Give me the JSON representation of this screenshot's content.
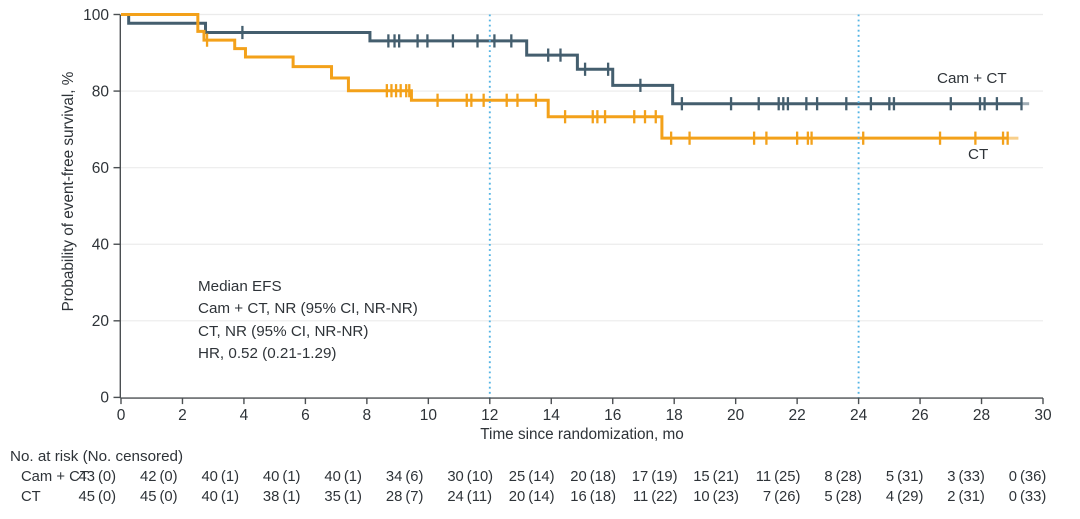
{
  "chart_data": {
    "type": "line",
    "subtype": "kaplan-meier-step-curves",
    "title": "",
    "xlabel": "Time since randomization, mo",
    "ylabel": "Probability of event-free survival, %",
    "xlim": [
      0,
      30
    ],
    "ylim": [
      0,
      100
    ],
    "xticks": [
      0,
      2,
      4,
      6,
      8,
      10,
      12,
      14,
      16,
      18,
      20,
      22,
      24,
      26,
      28,
      30
    ],
    "yticks": [
      0,
      20,
      40,
      60,
      80,
      100
    ],
    "grid": "horizontal",
    "gridline_color": "#ebebeb",
    "axis_color": "#4b4f52",
    "text_color": "#2e3338",
    "reference_lines_x": [
      12,
      24
    ],
    "reference_line_color": "#54b4e4",
    "annotation": {
      "lines": [
        "Median EFS",
        "Cam + CT, NR (95% CI, NR-NR)",
        "CT, NR (95% CI, NR-NR)",
        "HR, 0.52 (0.21-1.29)"
      ]
    },
    "series": [
      {
        "name": "Cam + CT",
        "color": "#445e6e",
        "steps": [
          [
            0,
            100
          ],
          [
            0.25,
            97.7
          ],
          [
            2.75,
            95.3
          ],
          [
            8.1,
            93.1
          ],
          [
            13.2,
            89.4
          ],
          [
            14.85,
            85.7
          ],
          [
            16.0,
            81.5
          ],
          [
            17.95,
            76.7
          ]
        ],
        "end": 29.3,
        "tail_end": 29.55,
        "censors": [
          [
            3.95,
            95.3
          ],
          [
            8.7,
            93.1
          ],
          [
            8.9,
            93.1
          ],
          [
            9.05,
            93.1
          ],
          [
            9.65,
            93.1
          ],
          [
            9.97,
            93.1
          ],
          [
            10.8,
            93.1
          ],
          [
            11.6,
            93.1
          ],
          [
            12.15,
            93.1
          ],
          [
            12.7,
            93.1
          ],
          [
            13.9,
            89.4
          ],
          [
            14.3,
            89.4
          ],
          [
            15.1,
            85.7
          ],
          [
            15.85,
            85.7
          ],
          [
            16.9,
            81.5
          ],
          [
            18.25,
            76.7
          ],
          [
            19.85,
            76.7
          ],
          [
            20.75,
            76.7
          ],
          [
            21.4,
            76.7
          ],
          [
            21.55,
            76.7
          ],
          [
            21.7,
            76.7
          ],
          [
            22.3,
            76.7
          ],
          [
            22.65,
            76.7
          ],
          [
            23.6,
            76.7
          ],
          [
            24.4,
            76.7
          ],
          [
            25.0,
            76.7
          ],
          [
            25.15,
            76.7
          ],
          [
            27.0,
            76.7
          ],
          [
            27.95,
            76.7
          ],
          [
            28.1,
            76.7
          ],
          [
            28.5,
            76.7
          ],
          [
            29.3,
            76.7
          ]
        ]
      },
      {
        "name": "CT",
        "color": "#f3a11a",
        "steps": [
          [
            0,
            100
          ],
          [
            2.5,
            95.6
          ],
          [
            2.7,
            93.3
          ],
          [
            3.7,
            91.1
          ],
          [
            4.05,
            88.9
          ],
          [
            5.6,
            86.4
          ],
          [
            6.85,
            83.4
          ],
          [
            7.4,
            80.1
          ],
          [
            9.45,
            77.6
          ],
          [
            13.9,
            73.3
          ],
          [
            17.6,
            67.7
          ]
        ],
        "end": 28.85,
        "tail_end": 29.2,
        "censors": [
          [
            2.8,
            93.3
          ],
          [
            8.65,
            80.1
          ],
          [
            8.8,
            80.1
          ],
          [
            8.95,
            80.1
          ],
          [
            9.1,
            80.1
          ],
          [
            9.28,
            80.1
          ],
          [
            9.38,
            80.1
          ],
          [
            10.3,
            77.6
          ],
          [
            11.25,
            77.6
          ],
          [
            11.4,
            77.6
          ],
          [
            11.8,
            77.6
          ],
          [
            12.55,
            77.6
          ],
          [
            12.9,
            77.6
          ],
          [
            13.5,
            77.6
          ],
          [
            14.45,
            73.3
          ],
          [
            15.35,
            73.3
          ],
          [
            15.5,
            73.3
          ],
          [
            15.75,
            73.3
          ],
          [
            16.7,
            73.3
          ],
          [
            17.05,
            73.3
          ],
          [
            17.4,
            73.3
          ],
          [
            17.9,
            67.7
          ],
          [
            18.5,
            67.7
          ],
          [
            20.6,
            67.7
          ],
          [
            21.0,
            67.7
          ],
          [
            22.0,
            67.7
          ],
          [
            22.35,
            67.7
          ],
          [
            22.47,
            67.7
          ],
          [
            24.15,
            67.7
          ],
          [
            26.65,
            67.7
          ],
          [
            27.8,
            67.7
          ],
          [
            28.7,
            67.7
          ],
          [
            28.85,
            67.7
          ]
        ]
      }
    ]
  },
  "risk_table": {
    "header": "No. at risk (No. censored)",
    "times": [
      0,
      2,
      4,
      6,
      8,
      10,
      12,
      14,
      16,
      18,
      20,
      22,
      24,
      26,
      28,
      30
    ],
    "rows": [
      {
        "label": "Cam + CT",
        "values": [
          "43 (0)",
          "42 (0)",
          "40 (1)",
          "40 (1)",
          "40 (1)",
          "34 (6)",
          "30 (10)",
          "25 (14)",
          "20 (18)",
          "17 (19)",
          "15 (21)",
          "11 (25)",
          "8 (28)",
          "5 (31)",
          "3 (33)",
          "0 (36)"
        ]
      },
      {
        "label": "CT",
        "values": [
          "45 (0)",
          "45 (0)",
          "40 (1)",
          "38 (1)",
          "35 (1)",
          "28 (7)",
          "24 (11)",
          "20 (14)",
          "16 (18)",
          "11 (22)",
          "10 (23)",
          "7 (26)",
          "5 (28)",
          "4 (29)",
          "2 (31)",
          "0 (33)"
        ]
      }
    ]
  }
}
